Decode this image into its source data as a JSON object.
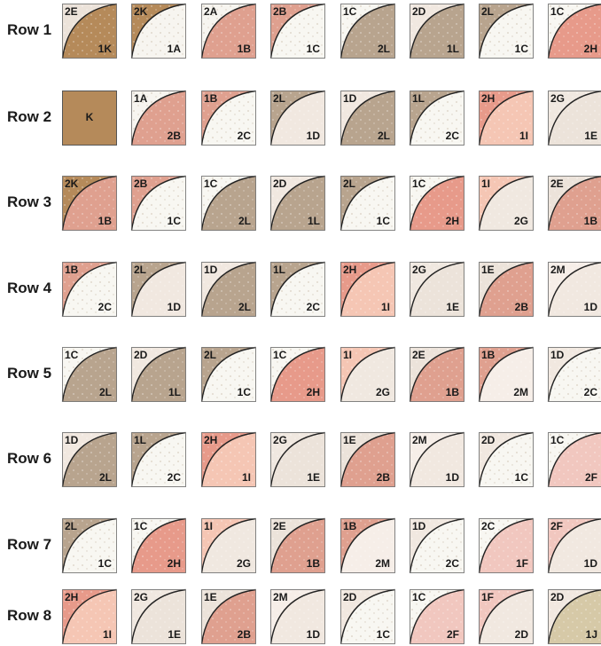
{
  "colors": {
    "K": "#b58a5a",
    "A": "#f7f5f0",
    "B": "#dfa08f",
    "C": "#f8f7f2",
    "D": "#f1e8e0",
    "E": "#ece3da",
    "F": "#f1c7bf",
    "G": "#f0e8e0",
    "H": "#e79a8a",
    "I": "#f5c6b4",
    "J": "#d6c9a7",
    "L": "#b8a48e",
    "M": "#f6eee8"
  },
  "rows": [
    {
      "label": "Row 1",
      "blocks": [
        {
          "tl": "2E",
          "br": "1K"
        },
        {
          "tl": "2K",
          "br": "1A"
        },
        {
          "tl": "2A",
          "br": "1B"
        },
        {
          "tl": "2B",
          "br": "1C"
        },
        {
          "tl": "1C",
          "br": "2L"
        },
        {
          "tl": "2D",
          "br": "1L"
        },
        {
          "tl": "2L",
          "br": "1C"
        },
        {
          "tl": "1C",
          "br": "2H"
        }
      ]
    },
    {
      "label": "Row 2",
      "blocks": [
        {
          "solid": "K"
        },
        {
          "tl": "1A",
          "br": "2B"
        },
        {
          "tl": "1B",
          "br": "2C"
        },
        {
          "tl": "2L",
          "br": "1D"
        },
        {
          "tl": "1D",
          "br": "2L"
        },
        {
          "tl": "1L",
          "br": "2C"
        },
        {
          "tl": "2H",
          "br": "1I"
        },
        {
          "tl": "2G",
          "br": "1E"
        }
      ]
    },
    {
      "label": "Row 3",
      "blocks": [
        {
          "tl": "2K",
          "br": "1B"
        },
        {
          "tl": "2B",
          "br": "1C"
        },
        {
          "tl": "1C",
          "br": "2L"
        },
        {
          "tl": "2D",
          "br": "1L"
        },
        {
          "tl": "2L",
          "br": "1C"
        },
        {
          "tl": "1C",
          "br": "2H"
        },
        {
          "tl": "1I",
          "br": "2G"
        },
        {
          "tl": "2E",
          "br": "1B"
        }
      ]
    },
    {
      "label": "Row 4",
      "blocks": [
        {
          "tl": "1B",
          "br": "2C"
        },
        {
          "tl": "2L",
          "br": "1D"
        },
        {
          "tl": "1D",
          "br": "2L"
        },
        {
          "tl": "1L",
          "br": "2C"
        },
        {
          "tl": "2H",
          "br": "1I"
        },
        {
          "tl": "2G",
          "br": "1E"
        },
        {
          "tl": "1E",
          "br": "2B"
        },
        {
          "tl": "2M",
          "br": "1D"
        }
      ]
    },
    {
      "label": "Row 5",
      "blocks": [
        {
          "tl": "1C",
          "br": "2L"
        },
        {
          "tl": "2D",
          "br": "1L"
        },
        {
          "tl": "2L",
          "br": "1C"
        },
        {
          "tl": "1C",
          "br": "2H"
        },
        {
          "tl": "1I",
          "br": "2G"
        },
        {
          "tl": "2E",
          "br": "1B"
        },
        {
          "tl": "1B",
          "br": "2M"
        },
        {
          "tl": "1D",
          "br": "2C"
        }
      ]
    },
    {
      "label": "Row 6",
      "blocks": [
        {
          "tl": "1D",
          "br": "2L"
        },
        {
          "tl": "1L",
          "br": "2C"
        },
        {
          "tl": "2H",
          "br": "1I"
        },
        {
          "tl": "2G",
          "br": "1E"
        },
        {
          "tl": "1E",
          "br": "2B"
        },
        {
          "tl": "2M",
          "br": "1D"
        },
        {
          "tl": "2D",
          "br": "1C"
        },
        {
          "tl": "1C",
          "br": "2F"
        }
      ]
    },
    {
      "label": "Row 7",
      "blocks": [
        {
          "tl": "2L",
          "br": "1C"
        },
        {
          "tl": "1C",
          "br": "2H"
        },
        {
          "tl": "1I",
          "br": "2G"
        },
        {
          "tl": "2E",
          "br": "1B"
        },
        {
          "tl": "1B",
          "br": "2M"
        },
        {
          "tl": "1D",
          "br": "2C"
        },
        {
          "tl": "2C",
          "br": "1F"
        },
        {
          "tl": "2F",
          "br": "1D"
        }
      ]
    },
    {
      "label": "Row 8",
      "blocks": [
        {
          "tl": "2H",
          "br": "1I"
        },
        {
          "tl": "2G",
          "br": "1E"
        },
        {
          "tl": "1E",
          "br": "2B"
        },
        {
          "tl": "2M",
          "br": "1D"
        },
        {
          "tl": "2D",
          "br": "1C"
        },
        {
          "tl": "1C",
          "br": "2F"
        },
        {
          "tl": "1F",
          "br": "2D"
        },
        {
          "tl": "2D",
          "br": "1J"
        }
      ]
    }
  ]
}
